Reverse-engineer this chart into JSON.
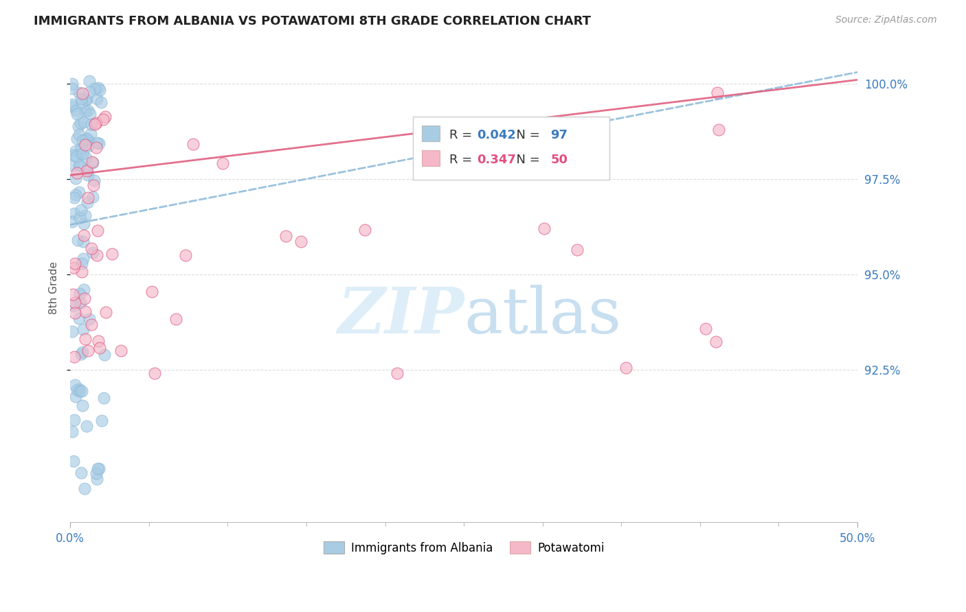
{
  "title": "IMMIGRANTS FROM ALBANIA VS POTAWATOMI 8TH GRADE CORRELATION CHART",
  "source": "Source: ZipAtlas.com",
  "ylabel": "8th Grade",
  "yaxis_labels": [
    "100.0%",
    "97.5%",
    "95.0%",
    "92.5%"
  ],
  "yaxis_values": [
    1.0,
    0.975,
    0.95,
    0.925
  ],
  "xaxis_range": [
    0.0,
    0.5
  ],
  "yaxis_range": [
    0.885,
    1.008
  ],
  "legend1_R": "0.042",
  "legend1_N": "97",
  "legend2_R": "0.347",
  "legend2_N": "50",
  "color_blue": "#a8cce4",
  "color_pink": "#f4b8c8",
  "color_blue_dark": "#3a7bbf",
  "color_pink_dark": "#e05080",
  "color_trend_blue": "#8ab8d8",
  "color_trend_pink": "#e06080",
  "grid_color": "#cccccc",
  "background_color": "#ffffff",
  "legend_label1": "Immigrants from Albania",
  "legend_label2": "Potawatomi"
}
